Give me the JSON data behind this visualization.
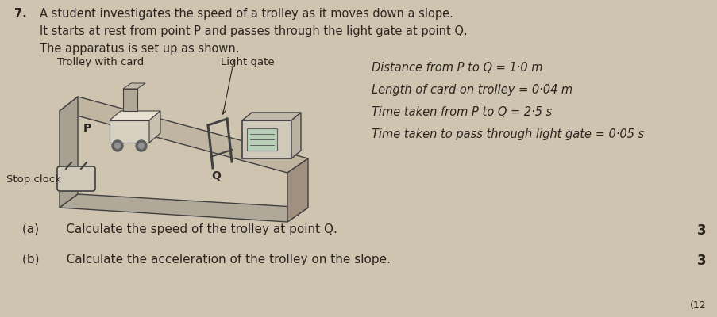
{
  "bg_color": "#cfc4b0",
  "question_number": "7.",
  "header_lines": [
    "A student investigates the speed of a trolley as it moves down a slope.",
    "It starts at rest from point P and passes through the light gate at point Q.",
    "The apparatus is set up as shown."
  ],
  "diagram_labels": {
    "trolley_with_card": "Trolley with card",
    "light_gate": "Light gate",
    "stop_clock": "Stop clock",
    "P": "P",
    "Q": "Q"
  },
  "data_lines": [
    "Distance from P to Q = 1·0 m",
    "Length of card on trolley = 0·04 m",
    "Time taken from P to Q = 2·5 s",
    "Time taken to pass through light gate = 0·05 s"
  ],
  "questions": [
    "(a)       Calculate the speed of the trolley at point Q.",
    "(b)       Calculate the acceleration of the trolley on the slope."
  ],
  "marks": [
    "3",
    "3"
  ],
  "text_color": "#2a2520",
  "font_size_header": 10.5,
  "font_size_body": 10.0,
  "font_size_small": 9.0,
  "font_size_question": 11.0
}
